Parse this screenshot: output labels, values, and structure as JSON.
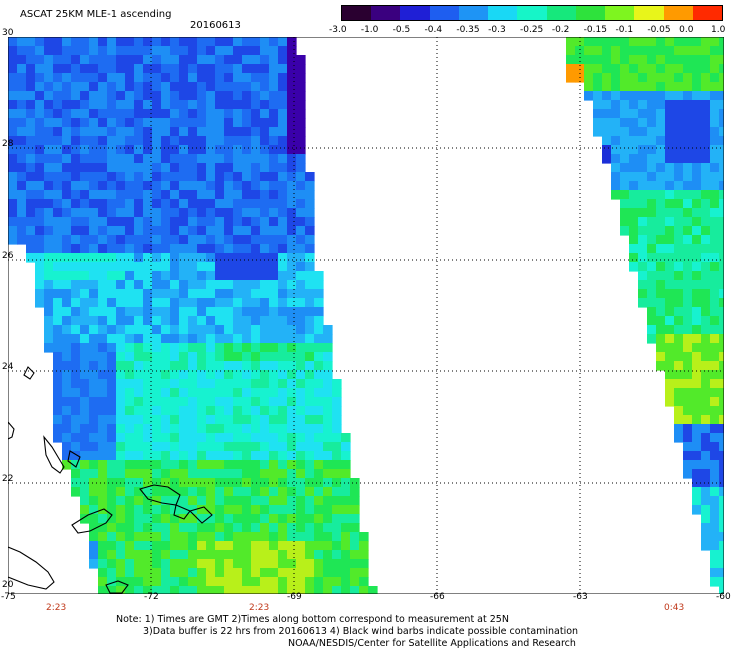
{
  "title": "ASCAT 25KM MLE-1 ascending",
  "date": "20160613",
  "colorbar": {
    "labels": [
      "-3.0",
      "-1.0",
      "-0.5",
      "-0.4",
      "-0.35",
      "-0.3",
      "-0.25",
      "-0.2",
      "-0.15",
      "-0.1",
      "-0.05",
      "0.0",
      "1.0"
    ],
    "colors": [
      "#2a0030",
      "#3a007f",
      "#1f1fd6",
      "#1e5ef0",
      "#1e94f5",
      "#19d8f5",
      "#16f5c8",
      "#16e87c",
      "#2ee23c",
      "#7ef51f",
      "#e8f51a",
      "#ff9a00",
      "#ff2a00"
    ]
  },
  "lat_labels": [
    "30",
    "28",
    "26",
    "24",
    "22",
    "20"
  ],
  "lon_labels": [
    "-75",
    "-72",
    "-69",
    "-66",
    "-63",
    "-60"
  ],
  "time_labels": [
    "2:23",
    "2:23",
    "0:43"
  ],
  "notes": [
    "Note: 1) Times are GMT 2)Times along bottom correspond to measurement at 25N",
    "3)Data buffer is 22 hrs from 20160613 4) Black wind barbs indicate possible contamination",
    "NOAA/NESDIS/Center for Satellite Applications and Research"
  ]
}
